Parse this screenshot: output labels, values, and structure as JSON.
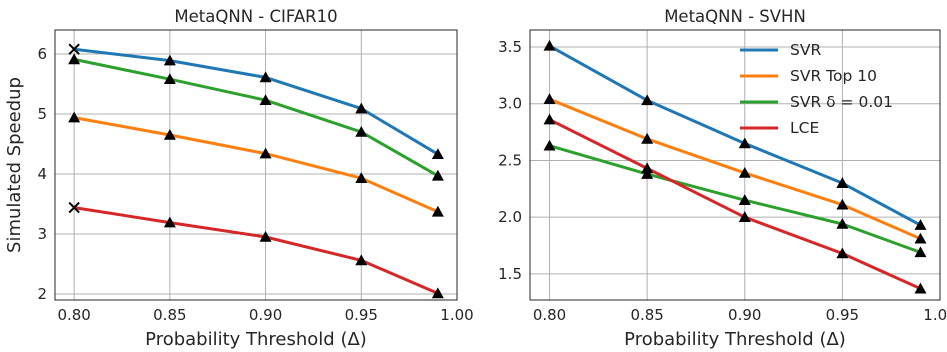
{
  "chart_data": [
    {
      "type": "line",
      "title": "MetaQNN - CIFAR10",
      "xlabel": "Probability Threshold (Δ)",
      "ylabel": "Simulated Speedup",
      "xlim": [
        0.79,
        1.0
      ],
      "ylim": [
        1.9,
        6.4
      ],
      "xticks": [
        "0.80",
        "0.85",
        "0.90",
        "0.95",
        "1.00"
      ],
      "yticks": [
        "2",
        "3",
        "4",
        "5",
        "6"
      ],
      "grid": true,
      "series": [
        {
          "key": "svr",
          "color": "#1f77b4",
          "x": [
            0.8,
            0.85,
            0.9,
            0.95,
            0.99
          ],
          "y": [
            6.08,
            5.89,
            5.61,
            5.09,
            4.33
          ],
          "markers": [
            "x",
            "^",
            "^",
            "^",
            "^"
          ]
        },
        {
          "key": "svr_delta",
          "color": "#2ca02c",
          "x": [
            0.8,
            0.85,
            0.9,
            0.95,
            0.99
          ],
          "y": [
            5.91,
            5.58,
            5.23,
            4.7,
            3.97
          ],
          "markers": [
            "^",
            "^",
            "^",
            "^",
            "^"
          ]
        },
        {
          "key": "svr_top10",
          "color": "#ff7f0e",
          "x": [
            0.8,
            0.85,
            0.9,
            0.95,
            0.99
          ],
          "y": [
            4.94,
            4.65,
            4.34,
            3.93,
            3.37
          ],
          "markers": [
            "^",
            "^",
            "^",
            "^",
            "^"
          ]
        },
        {
          "key": "lce",
          "color": "#d62728",
          "x": [
            0.8,
            0.85,
            0.9,
            0.95,
            0.99
          ],
          "y": [
            3.44,
            3.19,
            2.95,
            2.56,
            2.01
          ],
          "markers": [
            "x",
            "^",
            "^",
            "^",
            "^"
          ]
        }
      ]
    },
    {
      "type": "line",
      "title": "MetaQNN - SVHN",
      "xlabel": "Probability Threshold (Δ)",
      "ylabel": "",
      "xlim": [
        0.79,
        1.0
      ],
      "ylim": [
        1.27,
        3.65
      ],
      "xticks": [
        "0.80",
        "0.85",
        "0.90",
        "0.95",
        "1.00"
      ],
      "yticks": [
        "1.5",
        "2.0",
        "2.5",
        "3.0",
        "3.5"
      ],
      "grid": true,
      "legend": "top-right",
      "series": [
        {
          "name": "SVR",
          "color": "#1f77b4",
          "x": [
            0.8,
            0.85,
            0.9,
            0.95,
            0.99
          ],
          "y": [
            3.51,
            3.03,
            2.65,
            2.3,
            1.93
          ],
          "markers": [
            "^",
            "^",
            "^",
            "^",
            "^"
          ]
        },
        {
          "name": "SVR Top 10",
          "color": "#ff7f0e",
          "x": [
            0.8,
            0.85,
            0.9,
            0.95,
            0.99
          ],
          "y": [
            3.04,
            2.69,
            2.39,
            2.11,
            1.81
          ],
          "markers": [
            "^",
            "^",
            "^",
            "^",
            "^"
          ]
        },
        {
          "name": "SVR δ = 0.01",
          "color": "#2ca02c",
          "x": [
            0.8,
            0.85,
            0.9,
            0.95,
            0.99
          ],
          "y": [
            2.63,
            2.38,
            2.15,
            1.94,
            1.69
          ],
          "markers": [
            "^",
            "^",
            "^",
            "^",
            "^"
          ]
        },
        {
          "name": "LCE",
          "color": "#d62728",
          "x": [
            0.8,
            0.85,
            0.9,
            0.95,
            0.99
          ],
          "y": [
            2.86,
            2.43,
            2.0,
            1.68,
            1.37
          ],
          "markers": [
            "^",
            "^",
            "^",
            "^",
            "^"
          ]
        }
      ]
    }
  ]
}
